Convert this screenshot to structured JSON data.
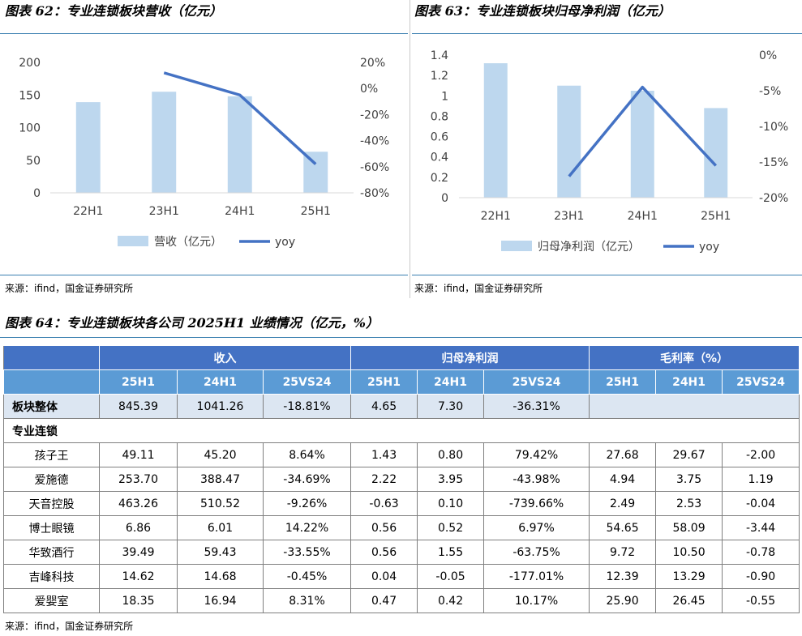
{
  "fig62": {
    "title": "图表 62：专业连锁板块营收（亿元）",
    "source": "来源：ifind，国金证券研究所"
  },
  "fig63": {
    "title": "图表 63：专业连锁板块归母净利润（亿元）",
    "source": "来源：ifind，国金证券研究所"
  },
  "fig64": {
    "title": "图表 64：专业连锁板块各公司 2025H1 业绩情况（亿元，%）",
    "source": "来源：ifind，国金证券研究所"
  },
  "colors": {
    "bar": "#bdd7ee",
    "line": "#4472c4",
    "header_dark": "#4472c4",
    "header_light": "#5b9bd5",
    "total_row": "#dce6f2"
  },
  "chart_data": [
    {
      "type": "bar+line",
      "categories": [
        "22H1",
        "23H1",
        "24H1",
        "25H1"
      ],
      "series": [
        {
          "name": "营收（亿元）",
          "type": "bar",
          "axis": "left",
          "values": [
            139,
            155,
            148,
            63
          ]
        },
        {
          "name": "yoy",
          "type": "line",
          "axis": "right",
          "values": [
            null,
            12,
            -5,
            -58
          ]
        }
      ],
      "ylim": [
        0,
        200
      ],
      "yticks": [
        "0",
        "50",
        "100",
        "150",
        "200"
      ],
      "y2lim": [
        -80,
        20
      ],
      "y2ticks": [
        "-80%",
        "-60%",
        "-40%",
        "-20%",
        "0%",
        "20%"
      ],
      "legend": "bottom",
      "grid": false
    },
    {
      "type": "bar+line",
      "categories": [
        "22H1",
        "23H1",
        "24H1",
        "25H1"
      ],
      "series": [
        {
          "name": "归母净利润（亿元）",
          "type": "bar",
          "axis": "left",
          "values": [
            1.32,
            1.1,
            1.05,
            0.88
          ]
        },
        {
          "name": "yoy",
          "type": "line",
          "axis": "right",
          "values": [
            null,
            -17,
            -4.5,
            -15.5
          ]
        }
      ],
      "ylim": [
        0,
        1.4
      ],
      "yticks": [
        "0",
        "0.2",
        "0.4",
        "0.6",
        "0.8",
        "1",
        "1.2",
        "1.4"
      ],
      "y2lim": [
        -20,
        0
      ],
      "y2ticks": [
        "-20%",
        "-15%",
        "-10%",
        "-5%",
        "0%"
      ],
      "legend": "bottom",
      "grid": false
    },
    {
      "type": "table",
      "groups": [
        "收入",
        "归母净利润",
        "毛利率（%）"
      ],
      "subheaders": [
        "25H1",
        "24H1",
        "25VS24",
        "25H1",
        "24H1",
        "25VS24",
        "25H1",
        "24H1",
        "25VS24"
      ],
      "total": {
        "name": "板块整体",
        "cells": [
          "845.39",
          "1041.26",
          "-18.81%",
          "4.65",
          "7.30",
          "-36.31%"
        ]
      },
      "group_label": "专业连锁",
      "rows": [
        {
          "name": "孩子王",
          "cells": [
            "49.11",
            "45.20",
            "8.64%",
            "1.43",
            "0.80",
            "79.42%",
            "27.68",
            "29.67",
            "-2.00"
          ]
        },
        {
          "name": "爱施德",
          "cells": [
            "253.70",
            "388.47",
            "-34.69%",
            "2.22",
            "3.95",
            "-43.98%",
            "4.94",
            "3.75",
            "1.19"
          ]
        },
        {
          "name": "天音控股",
          "cells": [
            "463.26",
            "510.52",
            "-9.26%",
            "-0.63",
            "0.10",
            "-739.66%",
            "2.49",
            "2.53",
            "-0.04"
          ]
        },
        {
          "name": "博士眼镜",
          "cells": [
            "6.86",
            "6.01",
            "14.22%",
            "0.56",
            "0.52",
            "6.97%",
            "54.65",
            "58.09",
            "-3.44"
          ]
        },
        {
          "name": "华致酒行",
          "cells": [
            "39.49",
            "59.43",
            "-33.55%",
            "0.56",
            "1.55",
            "-63.75%",
            "9.72",
            "10.50",
            "-0.78"
          ]
        },
        {
          "name": "吉峰科技",
          "cells": [
            "14.62",
            "14.68",
            "-0.45%",
            "0.04",
            "-0.05",
            "-177.01%",
            "12.39",
            "13.29",
            "-0.90"
          ]
        },
        {
          "name": "爱婴室",
          "cells": [
            "18.35",
            "16.94",
            "8.31%",
            "0.47",
            "0.42",
            "10.17%",
            "25.90",
            "26.45",
            "-0.55"
          ]
        }
      ]
    }
  ]
}
